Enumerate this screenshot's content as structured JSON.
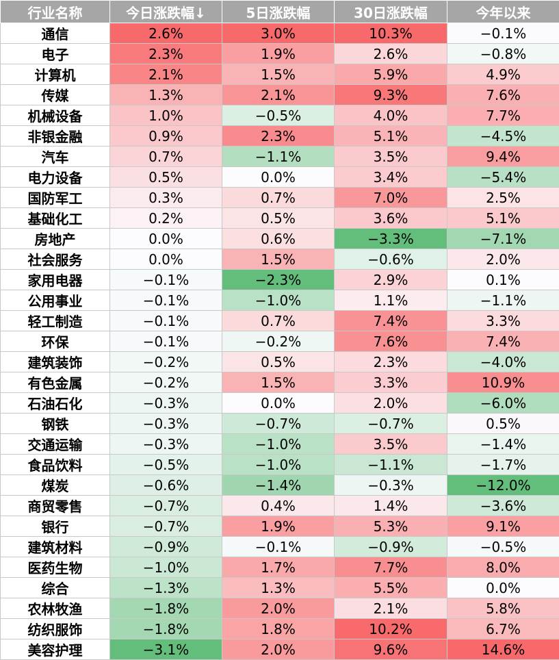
{
  "headers": [
    "行业名称",
    "今日涨跌幅↓",
    "5日涨跌幅",
    "30日涨跌幅",
    "今年以来"
  ],
  "colors": {
    "header_bg": "#a6a6a6",
    "header_text": "#ffffff",
    "positive_max": "#f8696b",
    "negative_max": "#63be7b",
    "neutral": "#fcfcff"
  },
  "rows": [
    {
      "name": "通信",
      "today": "2.6%",
      "d5": "3.0%",
      "d30": "10.3%",
      "ytd": "−0.1%"
    },
    {
      "name": "电子",
      "today": "2.3%",
      "d5": "1.9%",
      "d30": "2.6%",
      "ytd": "−0.8%"
    },
    {
      "name": "计算机",
      "today": "2.1%",
      "d5": "1.5%",
      "d30": "5.9%",
      "ytd": "4.9%"
    },
    {
      "name": "传媒",
      "today": "1.3%",
      "d5": "2.1%",
      "d30": "9.3%",
      "ytd": "7.6%"
    },
    {
      "name": "机械设备",
      "today": "1.0%",
      "d5": "−0.5%",
      "d30": "4.0%",
      "ytd": "7.7%"
    },
    {
      "name": "非银金融",
      "today": "0.9%",
      "d5": "2.3%",
      "d30": "5.1%",
      "ytd": "−4.5%"
    },
    {
      "name": "汽车",
      "today": "0.7%",
      "d5": "−1.1%",
      "d30": "3.5%",
      "ytd": "9.4%"
    },
    {
      "name": "电力设备",
      "today": "0.5%",
      "d5": "0.0%",
      "d30": "3.4%",
      "ytd": "−5.4%"
    },
    {
      "name": "国防军工",
      "today": "0.3%",
      "d5": "0.7%",
      "d30": "7.0%",
      "ytd": "2.5%"
    },
    {
      "name": "基础化工",
      "today": "0.2%",
      "d5": "0.5%",
      "d30": "3.6%",
      "ytd": "5.1%"
    },
    {
      "name": "房地产",
      "today": "0.0%",
      "d5": "0.6%",
      "d30": "−3.3%",
      "ytd": "−7.1%"
    },
    {
      "name": "社会服务",
      "today": "0.0%",
      "d5": "1.5%",
      "d30": "−0.6%",
      "ytd": "2.0%"
    },
    {
      "name": "家用电器",
      "today": "−0.1%",
      "d5": "−2.3%",
      "d30": "2.9%",
      "ytd": "0.1%"
    },
    {
      "name": "公用事业",
      "today": "−0.1%",
      "d5": "−1.0%",
      "d30": "1.1%",
      "ytd": "−1.1%"
    },
    {
      "name": "轻工制造",
      "today": "−0.1%",
      "d5": "0.7%",
      "d30": "7.4%",
      "ytd": "3.3%"
    },
    {
      "name": "环保",
      "today": "−0.1%",
      "d5": "−0.2%",
      "d30": "7.6%",
      "ytd": "7.4%"
    },
    {
      "name": "建筑装饰",
      "today": "−0.2%",
      "d5": "0.5%",
      "d30": "2.3%",
      "ytd": "−4.0%"
    },
    {
      "name": "有色金属",
      "today": "−0.2%",
      "d5": "1.5%",
      "d30": "3.3%",
      "ytd": "10.9%"
    },
    {
      "name": "石油石化",
      "today": "−0.3%",
      "d5": "0.0%",
      "d30": "2.0%",
      "ytd": "−6.0%"
    },
    {
      "name": "钢铁",
      "today": "−0.3%",
      "d5": "−0.7%",
      "d30": "−0.7%",
      "ytd": "0.5%"
    },
    {
      "name": "交通运输",
      "today": "−0.3%",
      "d5": "−1.0%",
      "d30": "3.5%",
      "ytd": "−1.4%"
    },
    {
      "name": "食品饮料",
      "today": "−0.5%",
      "d5": "−1.0%",
      "d30": "−1.1%",
      "ytd": "−1.7%"
    },
    {
      "name": "煤炭",
      "today": "−0.6%",
      "d5": "−1.4%",
      "d30": "−0.3%",
      "ytd": "−12.0%"
    },
    {
      "name": "商贸零售",
      "today": "−0.7%",
      "d5": "0.4%",
      "d30": "1.4%",
      "ytd": "−3.6%"
    },
    {
      "name": "银行",
      "today": "−0.7%",
      "d5": "1.9%",
      "d30": "5.3%",
      "ytd": "9.1%"
    },
    {
      "name": "建筑材料",
      "today": "−0.9%",
      "d5": "−0.1%",
      "d30": "−0.9%",
      "ytd": "−0.5%"
    },
    {
      "name": "医药生物",
      "today": "−1.0%",
      "d5": "1.7%",
      "d30": "7.7%",
      "ytd": "8.0%"
    },
    {
      "name": "综合",
      "today": "−1.3%",
      "d5": "1.3%",
      "d30": "5.5%",
      "ytd": "0.0%"
    },
    {
      "name": "农林牧渔",
      "today": "−1.8%",
      "d5": "2.0%",
      "d30": "2.1%",
      "ytd": "5.8%"
    },
    {
      "name": "纺织服饰",
      "today": "−1.8%",
      "d5": "1.8%",
      "d30": "10.2%",
      "ytd": "6.7%"
    },
    {
      "name": "美容护理",
      "today": "−3.1%",
      "d5": "2.0%",
      "d30": "9.6%",
      "ytd": "14.6%"
    }
  ]
}
